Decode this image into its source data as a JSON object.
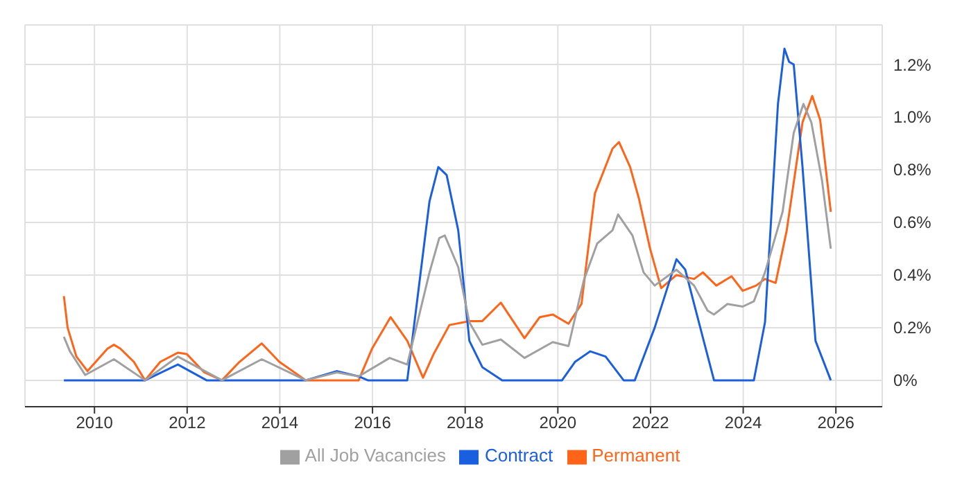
{
  "chart_data": {
    "type": "line",
    "xlim": [
      2008.5,
      2027
    ],
    "xticks": [
      2010,
      2012,
      2014,
      2016,
      2018,
      2020,
      2022,
      2024,
      2026
    ],
    "ylim": [
      -0.1,
      1.35
    ],
    "yticks": [
      {
        "value": 0,
        "label": "0%"
      },
      {
        "value": 0.2,
        "label": "0.2%"
      },
      {
        "value": 0.4,
        "label": "0.4%"
      },
      {
        "value": 0.6,
        "label": "0.6%"
      },
      {
        "value": 0.8,
        "label": "0.8%"
      },
      {
        "value": 1,
        "label": "1.0%"
      },
      {
        "value": 1.2,
        "label": "1.2%"
      }
    ],
    "grid": true,
    "legend": "bottom",
    "marker": "none",
    "line_style": "solid",
    "series": [
      {
        "name": "Permanent",
        "color": "#ff6418",
        "x": [
          2009.34,
          2009.42,
          2009.61,
          2009.85,
          2010.28,
          2010.42,
          2010.56,
          2010.85,
          2011.09,
          2011.42,
          2011.8,
          2011.99,
          2012.37,
          2012.75,
          2013.13,
          2013.61,
          2013.99,
          2014.56,
          2015.23,
          2015.7,
          2015.99,
          2016.39,
          2016.75,
          2017.09,
          2017.32,
          2017.66,
          2018.09,
          2018.37,
          2018.77,
          2019.28,
          2019.61,
          2019.89,
          2020.23,
          2020.51,
          2020.8,
          2021.18,
          2021.32,
          2021.56,
          2021.75,
          2021.99,
          2022.23,
          2022.56,
          2022.94,
          2023.13,
          2023.42,
          2023.75,
          2023.99,
          2024.28,
          2024.47,
          2024.7,
          2024.94,
          2025.28,
          2025.49,
          2025.66,
          2025.89
        ],
        "values": [
          0.32,
          0.2,
          0.09,
          0.035,
          0.12,
          0.135,
          0.12,
          0.07,
          0,
          0.07,
          0.105,
          0.1,
          0.03,
          0,
          0.07,
          0.14,
          0.07,
          0,
          0,
          0,
          0.12,
          0.24,
          0.15,
          0.01,
          0.1,
          0.21,
          0.225,
          0.225,
          0.295,
          0.16,
          0.24,
          0.25,
          0.215,
          0.29,
          0.71,
          0.88,
          0.905,
          0.81,
          0.69,
          0.5,
          0.35,
          0.4,
          0.385,
          0.41,
          0.36,
          0.395,
          0.34,
          0.36,
          0.385,
          0.37,
          0.57,
          0.98,
          1.08,
          0.99,
          0.64
        ]
      },
      {
        "name": "Contract",
        "color": "#1a5fe0",
        "x": [
          2009.34,
          2011.09,
          2011.8,
          2012.42,
          2014.56,
          2015.23,
          2015.7,
          2015.9,
          2016.75,
          2017.23,
          2017.42,
          2017.6,
          2017.85,
          2018.09,
          2018.37,
          2018.8,
          2020.09,
          2020.37,
          2020.7,
          2021.03,
          2021.42,
          2021.66,
          2022.09,
          2022.56,
          2022.75,
          2022.94,
          2023.37,
          2024.23,
          2024.47,
          2024.75,
          2024.89,
          2024.99,
          2025.09,
          2025.28,
          2025.56,
          2025.89
        ],
        "values": [
          0,
          0,
          0.06,
          0,
          0,
          0.035,
          0.015,
          0,
          0,
          0.68,
          0.81,
          0.78,
          0.57,
          0.15,
          0.05,
          0,
          0,
          0.07,
          0.11,
          0.09,
          0,
          0,
          0.2,
          0.46,
          0.42,
          0.29,
          0,
          0,
          0.22,
          1.05,
          1.26,
          1.21,
          1.2,
          0.81,
          0.15,
          0
        ]
      },
      {
        "name": "All Job Vacancies",
        "color": "#a0a0a0",
        "x": [
          2009.34,
          2009.47,
          2009.8,
          2010.42,
          2011.09,
          2011.8,
          2012.75,
          2013.61,
          2014.56,
          2015.23,
          2015.7,
          2016.37,
          2016.75,
          2017.23,
          2017.44,
          2017.56,
          2017.85,
          2018.09,
          2018.37,
          2018.77,
          2019.28,
          2019.89,
          2020.23,
          2020.56,
          2020.85,
          2021.18,
          2021.3,
          2021.61,
          2021.85,
          2022.09,
          2022.56,
          2022.94,
          2023.23,
          2023.37,
          2023.66,
          2023.99,
          2024.23,
          2024.47,
          2024.85,
          2025.09,
          2025.3,
          2025.47,
          2025.7,
          2025.89
        ],
        "values": [
          0.165,
          0.11,
          0.02,
          0.08,
          0,
          0.09,
          0,
          0.08,
          0,
          0.03,
          0.015,
          0.085,
          0.06,
          0.41,
          0.54,
          0.55,
          0.43,
          0.22,
          0.135,
          0.155,
          0.085,
          0.145,
          0.13,
          0.38,
          0.52,
          0.57,
          0.63,
          0.55,
          0.41,
          0.36,
          0.42,
          0.36,
          0.265,
          0.25,
          0.29,
          0.28,
          0.3,
          0.41,
          0.64,
          0.94,
          1.05,
          0.98,
          0.76,
          0.5
        ]
      }
    ]
  }
}
